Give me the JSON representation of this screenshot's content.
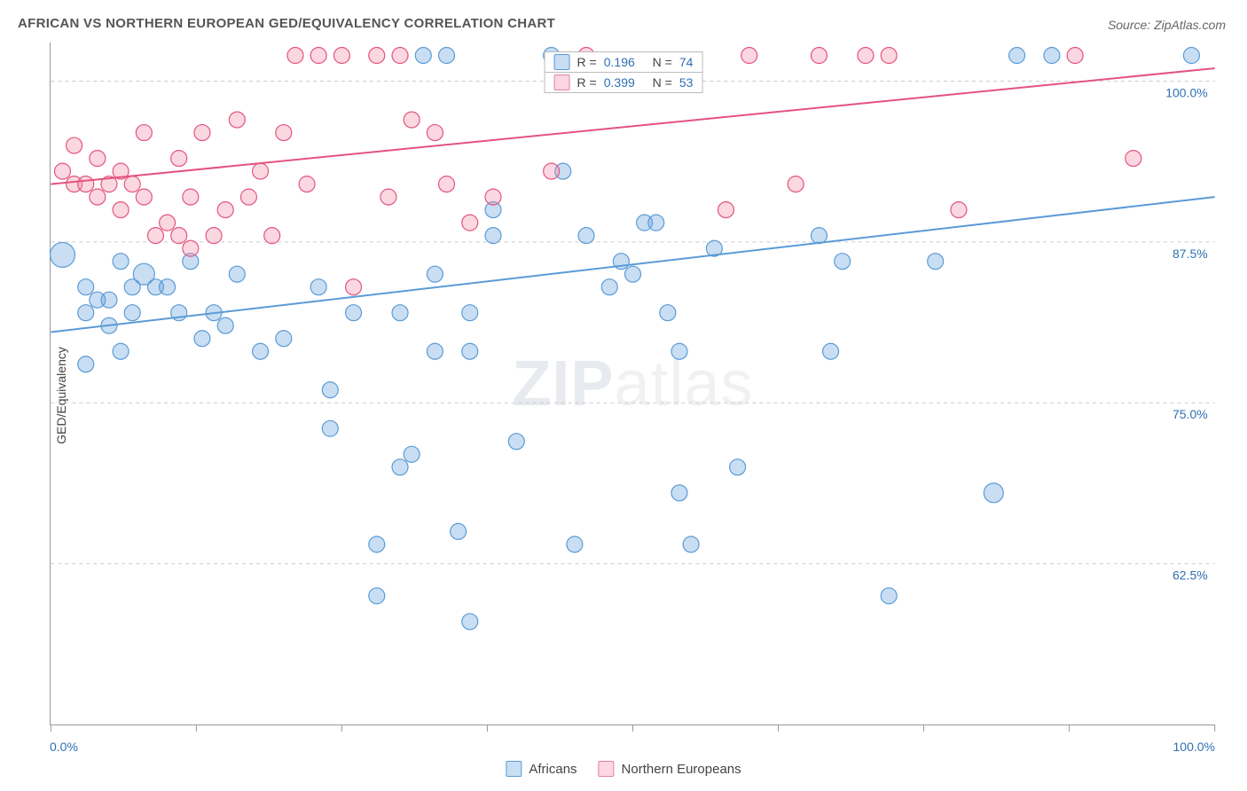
{
  "title": "AFRICAN VS NORTHERN EUROPEAN GED/EQUIVALENCY CORRELATION CHART",
  "source": "Source: ZipAtlas.com",
  "ylabel": "GED/Equivalency",
  "watermark_zip": "ZIP",
  "watermark_atlas": "atlas",
  "chart": {
    "type": "scatter",
    "background_color": "#ffffff",
    "grid_color": "#cccccc",
    "axis_color": "#999999",
    "text_color": "#444444",
    "value_color": "#2f6fb3",
    "xlim": [
      0,
      100
    ],
    "ylim": [
      50,
      103
    ],
    "x_axis_labels": {
      "min": "0.0%",
      "max": "100.0%"
    },
    "y_ticks": [
      62.5,
      75,
      87.5,
      100
    ],
    "y_tick_labels": [
      "62.5%",
      "75.0%",
      "87.5%",
      "100.0%"
    ],
    "x_ticks": [
      0,
      12.5,
      25,
      37.5,
      50,
      62.5,
      75,
      87.5,
      100
    ],
    "marker_radius": 9,
    "marker_fill_opacity": 0.35,
    "marker_stroke_width": 1.2,
    "line_width": 2,
    "series": [
      {
        "name": "Africans",
        "color": "#5a9bd5",
        "fill": "rgba(100,160,220,0.35)",
        "R": "0.196",
        "N": "74",
        "trend": {
          "x1": 0,
          "y1": 80.5,
          "x2": 100,
          "y2": 91
        },
        "points": [
          [
            1,
            86.5,
            14
          ],
          [
            3,
            84
          ],
          [
            3,
            82
          ],
          [
            6,
            86
          ],
          [
            8,
            85,
            12
          ],
          [
            5,
            83
          ],
          [
            7,
            84
          ],
          [
            9,
            84
          ],
          [
            12,
            86
          ],
          [
            4,
            83
          ],
          [
            7,
            82
          ],
          [
            10,
            84
          ],
          [
            5,
            81
          ],
          [
            11,
            82
          ],
          [
            6,
            79
          ],
          [
            3,
            78
          ],
          [
            14,
            82
          ],
          [
            13,
            80
          ],
          [
            15,
            81
          ],
          [
            16,
            85
          ],
          [
            18,
            79
          ],
          [
            20,
            80
          ],
          [
            23,
            84
          ],
          [
            24,
            76
          ],
          [
            24,
            73
          ],
          [
            26,
            82
          ],
          [
            28,
            64
          ],
          [
            28,
            60
          ],
          [
            30,
            82
          ],
          [
            30,
            70
          ],
          [
            31,
            71
          ],
          [
            32,
            102
          ],
          [
            33,
            85
          ],
          [
            33,
            79
          ],
          [
            34,
            102
          ],
          [
            35,
            65
          ],
          [
            36,
            82
          ],
          [
            36,
            79
          ],
          [
            36,
            58
          ],
          [
            38,
            88
          ],
          [
            38,
            90
          ],
          [
            40,
            72
          ],
          [
            43,
            102
          ],
          [
            44,
            93
          ],
          [
            45,
            64
          ],
          [
            46,
            88
          ],
          [
            48,
            84
          ],
          [
            49,
            86
          ],
          [
            50,
            85
          ],
          [
            51,
            89
          ],
          [
            52,
            89
          ],
          [
            53,
            82
          ],
          [
            54,
            79
          ],
          [
            54,
            68
          ],
          [
            55,
            64
          ],
          [
            57,
            87
          ],
          [
            59,
            70
          ],
          [
            66,
            88
          ],
          [
            67,
            79
          ],
          [
            68,
            86
          ],
          [
            72,
            60
          ],
          [
            76,
            86
          ],
          [
            81,
            68,
            11
          ],
          [
            83,
            102
          ],
          [
            86,
            102
          ],
          [
            98,
            102
          ]
        ]
      },
      {
        "name": "Northern Europeans",
        "color": "#e4537f",
        "fill": "rgba(240,140,170,0.35)",
        "R": "0.399",
        "N": "53",
        "trend": {
          "x1": 0,
          "y1": 92,
          "x2": 100,
          "y2": 101
        },
        "points": [
          [
            1,
            93
          ],
          [
            2,
            92
          ],
          [
            2,
            95
          ],
          [
            3,
            92
          ],
          [
            4,
            94
          ],
          [
            4,
            91
          ],
          [
            5,
            92
          ],
          [
            6,
            93
          ],
          [
            6,
            90
          ],
          [
            7,
            92
          ],
          [
            8,
            96
          ],
          [
            8,
            91
          ],
          [
            9,
            88
          ],
          [
            10,
            89
          ],
          [
            11,
            94
          ],
          [
            12,
            91
          ],
          [
            13,
            96
          ],
          [
            11,
            88
          ],
          [
            12,
            87
          ],
          [
            14,
            88
          ],
          [
            15,
            90
          ],
          [
            16,
            97
          ],
          [
            17,
            91
          ],
          [
            18,
            93
          ],
          [
            19,
            88
          ],
          [
            20,
            96
          ],
          [
            21,
            102
          ],
          [
            22,
            92
          ],
          [
            23,
            102
          ],
          [
            25,
            102
          ],
          [
            26,
            84
          ],
          [
            28,
            102
          ],
          [
            29,
            91
          ],
          [
            30,
            102
          ],
          [
            31,
            97
          ],
          [
            33,
            96
          ],
          [
            34,
            92
          ],
          [
            36,
            89
          ],
          [
            38,
            91
          ],
          [
            43,
            93
          ],
          [
            46,
            102
          ],
          [
            58,
            90
          ],
          [
            60,
            102
          ],
          [
            64,
            92
          ],
          [
            66,
            102
          ],
          [
            70,
            102
          ],
          [
            78,
            90
          ],
          [
            88,
            102
          ],
          [
            93,
            94
          ],
          [
            72,
            102
          ]
        ]
      }
    ]
  },
  "legend_top": [
    {
      "swatch": "blue",
      "r_label": "R =",
      "r_val": "0.196",
      "n_label": "N =",
      "n_val": "74"
    },
    {
      "swatch": "pink",
      "r_label": "R =",
      "r_val": "0.399",
      "n_label": "N =",
      "n_val": "53"
    }
  ],
  "legend_bottom": [
    {
      "swatch": "blue",
      "label": "Africans"
    },
    {
      "swatch": "pink",
      "label": "Northern Europeans"
    }
  ]
}
